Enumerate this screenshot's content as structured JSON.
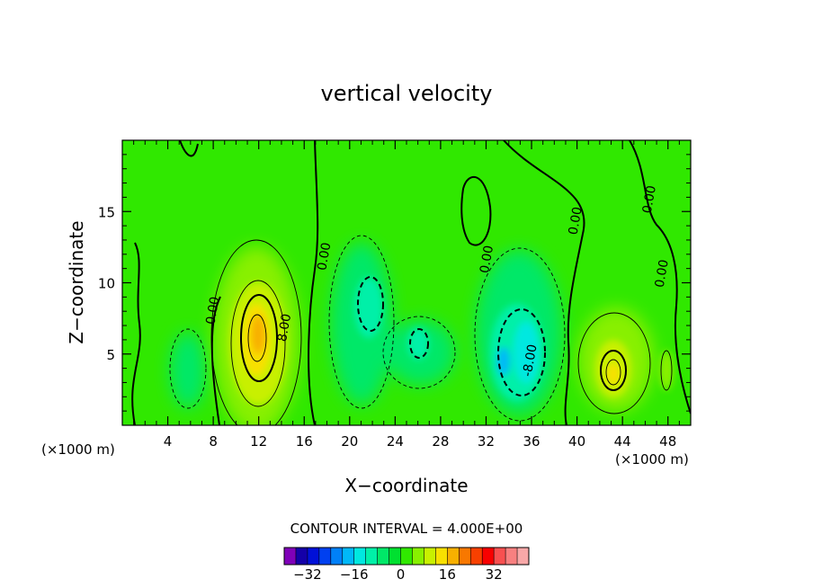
{
  "chart_data": {
    "type": "heatmap",
    "title": "vertical velocity",
    "xlabel": "X−coordinate",
    "ylabel": "Z−coordinate",
    "x_units_left": "(×1000 m)",
    "x_units_right": "(×1000 m)",
    "xlim": [
      0,
      50
    ],
    "ylim": [
      0,
      20
    ],
    "x_ticks": [
      4,
      8,
      12,
      16,
      20,
      24,
      28,
      32,
      36,
      40,
      44,
      48
    ],
    "y_ticks": [
      5,
      10,
      15
    ],
    "contour_interval_text": "CONTOUR INTERVAL = 4.000E+00",
    "contour_interval": 4.0,
    "contour_labels": [
      {
        "x": 8.3,
        "z": 8.0,
        "text": "0.00"
      },
      {
        "x": 18.1,
        "z": 11.8,
        "text": "0.00"
      },
      {
        "x": 14.6,
        "z": 6.8,
        "text": "8.00"
      },
      {
        "x": 32.4,
        "z": 11.6,
        "text": "0.00"
      },
      {
        "x": 40.2,
        "z": 14.3,
        "text": "0.00"
      },
      {
        "x": 46.7,
        "z": 15.8,
        "text": "0.00"
      },
      {
        "x": 47.8,
        "z": 10.6,
        "text": "0.00"
      },
      {
        "x": 36.2,
        "z": 4.5,
        "text": "-8.00"
      }
    ],
    "features": [
      {
        "sign": "positive",
        "x": 12.0,
        "z": 6.5,
        "peak": 22
      },
      {
        "sign": "positive",
        "x": 43.0,
        "z": 3.8,
        "peak": 12
      },
      {
        "sign": "positive",
        "x": 47.5,
        "z": 4.0,
        "peak": 6
      },
      {
        "sign": "negative",
        "x": 21.5,
        "z": 7.5,
        "peak": -10
      },
      {
        "sign": "negative",
        "x": 26.5,
        "z": 5.5,
        "peak": -9
      },
      {
        "sign": "negative",
        "x": 34.8,
        "z": 5.5,
        "peak": -14
      },
      {
        "sign": "negative",
        "x": 5.8,
        "z": 4.0,
        "peak": -5
      }
    ],
    "colorbar": {
      "tick_labels": [
        "−32",
        "−16",
        "0",
        "16",
        "32"
      ],
      "tick_values": [
        -32,
        -16,
        0,
        16,
        32
      ],
      "colors": [
        "#7f00b8",
        "#1400a8",
        "#0010d8",
        "#0040f0",
        "#0080f8",
        "#00b8f8",
        "#00e8e0",
        "#00f0a8",
        "#00e868",
        "#00e030",
        "#30e800",
        "#88f000",
        "#c8f000",
        "#f8e000",
        "#f8b000",
        "#f87800",
        "#f84000",
        "#f80000",
        "#f85050",
        "#f88080",
        "#f8a8a8"
      ]
    }
  }
}
